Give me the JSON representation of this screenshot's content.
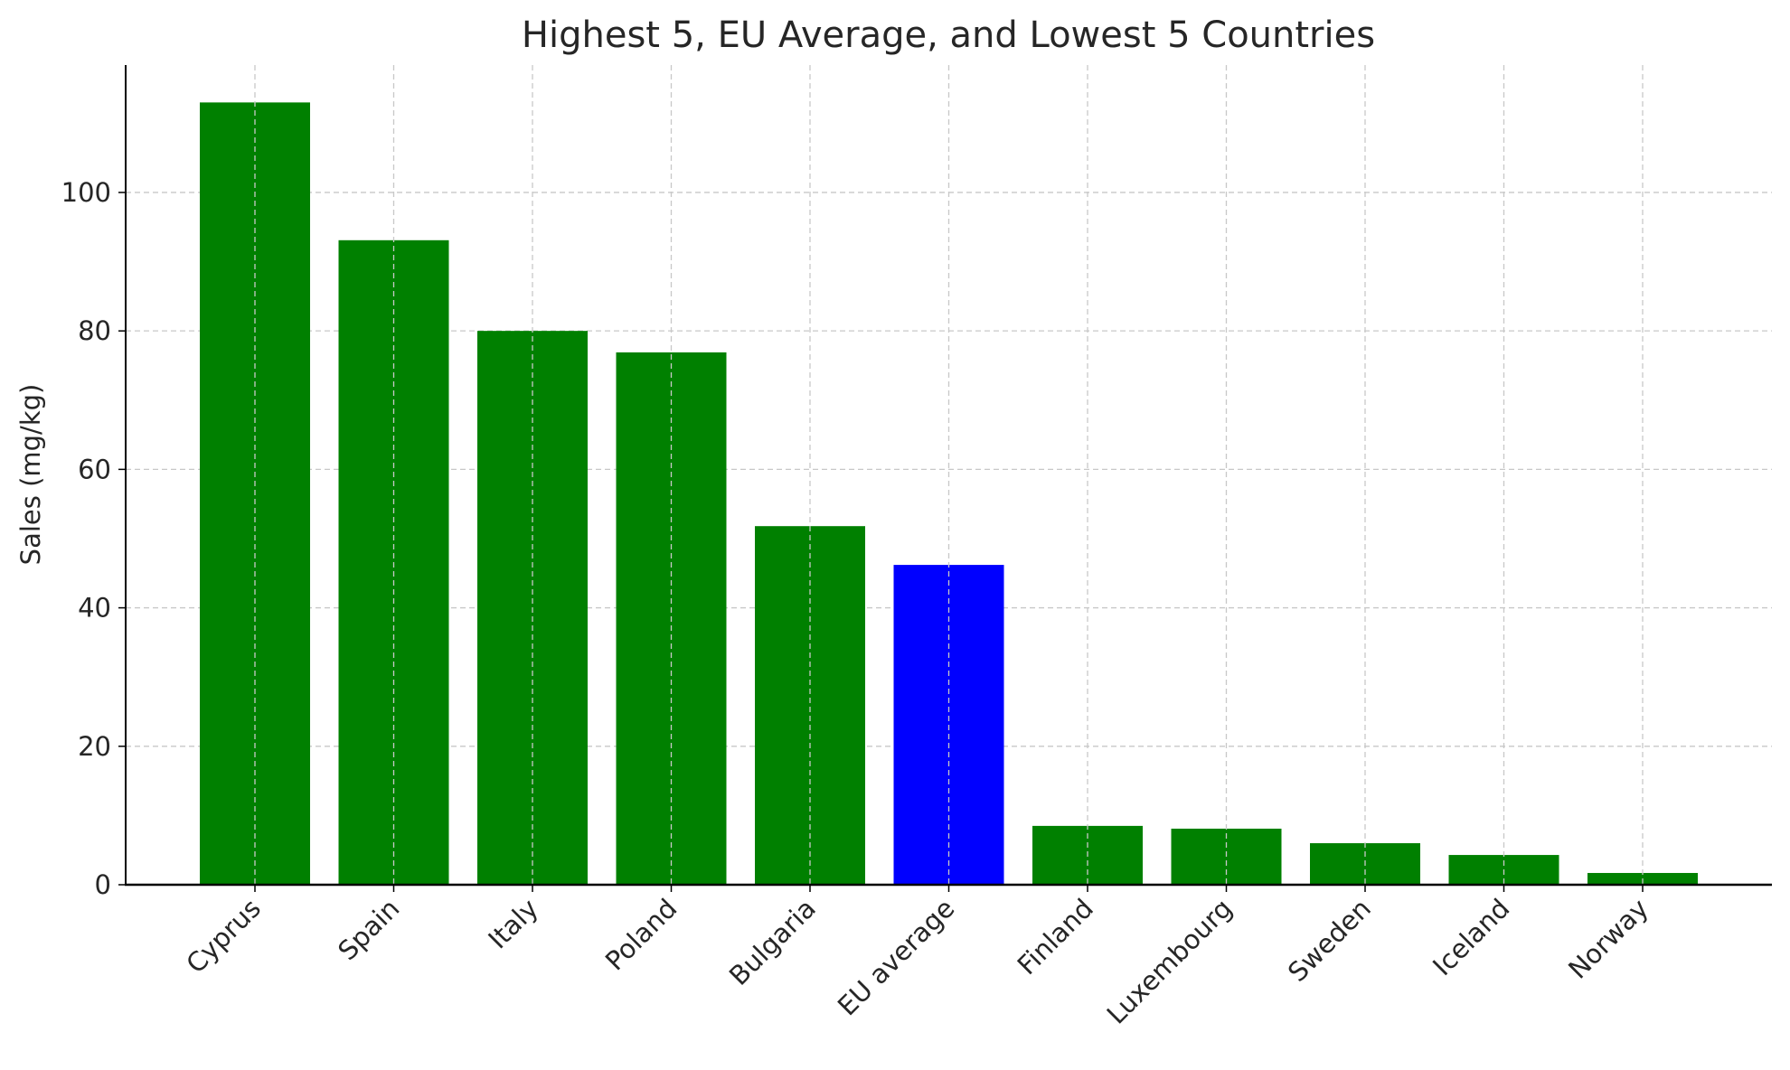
{
  "chart_data": {
    "type": "bar",
    "title": "Highest 5, EU Average, and Lowest 5 Countries",
    "xlabel": "",
    "ylabel": "Sales (mg/kg)",
    "categories": [
      "Cyprus",
      "Spain",
      "Italy",
      "Poland",
      "Bulgaria",
      "EU average",
      "Finland",
      "Luxembourg",
      "Sweden",
      "Iceland",
      "Norway"
    ],
    "values": [
      113.0,
      93.1,
      80.0,
      76.9,
      51.8,
      46.2,
      8.5,
      8.1,
      6.0,
      4.3,
      1.7
    ],
    "colors": [
      "#008000",
      "#008000",
      "#008000",
      "#008000",
      "#008000",
      "#0000ff",
      "#008000",
      "#008000",
      "#008000",
      "#008000",
      "#008000"
    ],
    "ylim": [
      0,
      118.4
    ],
    "yticks": [
      0,
      20,
      40,
      60,
      80,
      100
    ],
    "grid": true
  }
}
